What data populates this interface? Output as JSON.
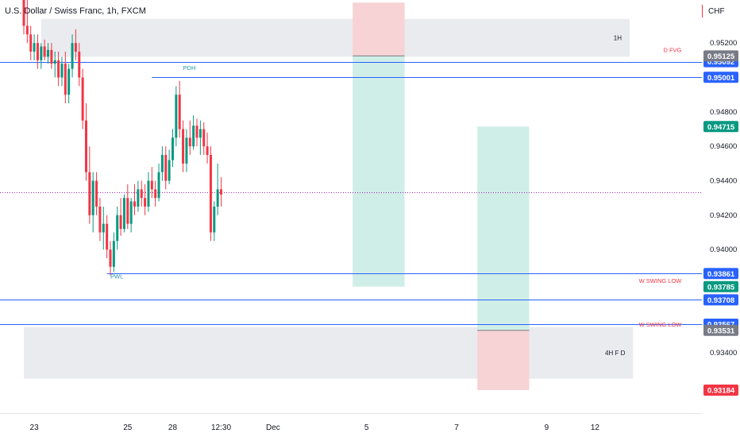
{
  "header": {
    "title": "U.S. Dollar / Swiss Franc, 1h, FXCM",
    "currency": "CHF"
  },
  "colors": {
    "bull": "#089981",
    "bear": "#f23645",
    "hline": "#2962ff",
    "zone": "#e9ebef",
    "profit": "#cfeee7",
    "loss": "#f7d3d6",
    "dotted": "#9c27b0",
    "axis_text": "#131722",
    "label_red": "#f23645",
    "label_teal": "#2196a8"
  },
  "chart_data": {
    "type": "candlestick",
    "title": "U.S. Dollar / Swiss Franc, 1h, FXCM",
    "ylim": [
      0.9305,
      0.9545
    ],
    "y_ticks": [
      0.952,
      0.948,
      0.946,
      0.944,
      0.942,
      0.94,
      0.934
    ],
    "y_tick_labels": [
      "0.95200",
      "0.94800",
      "0.94600",
      "0.94400",
      "0.94200",
      "0.94000",
      "0.93400"
    ],
    "x_ticks": [
      {
        "label": "23",
        "idx": 3
      },
      {
        "label": "25",
        "idx": 30
      },
      {
        "label": "28",
        "idx": 43
      },
      {
        "label": "12:30",
        "idx": 57
      },
      {
        "label": "Dec",
        "idx": 72
      },
      {
        "label": "5",
        "idx": 99
      },
      {
        "label": "7",
        "idx": 125
      },
      {
        "label": "9",
        "idx": 151
      },
      {
        "label": "12",
        "idx": 165
      }
    ],
    "candles": [
      [
        0.9545,
        0.9545,
        0.9525,
        0.953
      ],
      [
        0.953,
        0.9545,
        0.952,
        0.9525
      ],
      [
        0.9525,
        0.953,
        0.951,
        0.9515
      ],
      [
        0.9515,
        0.9525,
        0.951,
        0.952
      ],
      [
        0.952,
        0.9525,
        0.9505,
        0.951
      ],
      [
        0.951,
        0.952,
        0.9505,
        0.9518
      ],
      [
        0.9518,
        0.9522,
        0.951,
        0.9512
      ],
      [
        0.9512,
        0.952,
        0.9508,
        0.9516
      ],
      [
        0.9516,
        0.952,
        0.9505,
        0.9508
      ],
      [
        0.9508,
        0.9515,
        0.95,
        0.951
      ],
      [
        0.951,
        0.9515,
        0.9495,
        0.95
      ],
      [
        0.95,
        0.9512,
        0.9495,
        0.9508
      ],
      [
        0.9508,
        0.9515,
        0.9485,
        0.949
      ],
      [
        0.949,
        0.9508,
        0.9485,
        0.9505
      ],
      [
        0.9505,
        0.9525,
        0.95,
        0.952
      ],
      [
        0.952,
        0.9528,
        0.951,
        0.9515
      ],
      [
        0.9515,
        0.952,
        0.9495,
        0.95
      ],
      [
        0.95,
        0.9505,
        0.947,
        0.9475
      ],
      [
        0.9475,
        0.9485,
        0.944,
        0.9445
      ],
      [
        0.9445,
        0.946,
        0.9415,
        0.942
      ],
      [
        0.942,
        0.9445,
        0.941,
        0.944
      ],
      [
        0.944,
        0.9445,
        0.942,
        0.9425
      ],
      [
        0.9425,
        0.943,
        0.9405,
        0.941
      ],
      [
        0.941,
        0.9425,
        0.94,
        0.9415
      ],
      [
        0.9415,
        0.942,
        0.9395,
        0.94
      ],
      [
        0.94,
        0.9405,
        0.9385,
        0.939
      ],
      [
        0.939,
        0.941,
        0.9387,
        0.9405
      ],
      [
        0.9405,
        0.9425,
        0.94,
        0.942
      ],
      [
        0.942,
        0.943,
        0.9408,
        0.9412
      ],
      [
        0.9412,
        0.9432,
        0.941,
        0.943
      ],
      [
        0.943,
        0.9438,
        0.9412,
        0.9415
      ],
      [
        0.9415,
        0.943,
        0.941,
        0.9428
      ],
      [
        0.9428,
        0.9438,
        0.942,
        0.9425
      ],
      [
        0.9425,
        0.944,
        0.9422,
        0.9435
      ],
      [
        0.9435,
        0.944,
        0.9425,
        0.943
      ],
      [
        0.943,
        0.9438,
        0.942,
        0.9425
      ],
      [
        0.9425,
        0.9445,
        0.9422,
        0.944
      ],
      [
        0.944,
        0.9448,
        0.943,
        0.9435
      ],
      [
        0.9435,
        0.944,
        0.9425,
        0.943
      ],
      [
        0.943,
        0.945,
        0.9428,
        0.9445
      ],
      [
        0.9445,
        0.946,
        0.944,
        0.9455
      ],
      [
        0.9455,
        0.946,
        0.9435,
        0.944
      ],
      [
        0.944,
        0.9458,
        0.9438,
        0.9452
      ],
      [
        0.9452,
        0.947,
        0.9448,
        0.9465
      ],
      [
        0.9465,
        0.9495,
        0.946,
        0.949
      ],
      [
        0.949,
        0.9498,
        0.9465,
        0.947
      ],
      [
        0.947,
        0.9475,
        0.9445,
        0.945
      ],
      [
        0.945,
        0.947,
        0.9445,
        0.9465
      ],
      [
        0.9465,
        0.9475,
        0.9455,
        0.946
      ],
      [
        0.946,
        0.9478,
        0.9458,
        0.9472
      ],
      [
        0.9472,
        0.9476,
        0.946,
        0.9465
      ],
      [
        0.9465,
        0.9475,
        0.9455,
        0.947
      ],
      [
        0.947,
        0.9474,
        0.9455,
        0.946
      ],
      [
        0.946,
        0.9468,
        0.945,
        0.9455
      ],
      [
        0.9455,
        0.946,
        0.9405,
        0.941
      ],
      [
        0.941,
        0.9428,
        0.9405,
        0.9425
      ],
      [
        0.9425,
        0.945,
        0.942,
        0.9435
      ],
      [
        0.9435,
        0.9442,
        0.9425,
        0.9432
      ]
    ],
    "lines": [
      {
        "price": 0.95092,
        "start_idx": 0
      },
      {
        "price": 0.95001,
        "start_idx": 37
      },
      {
        "price": 0.93861,
        "start_idx": 24
      },
      {
        "price": 0.93708,
        "start_idx": 0
      },
      {
        "price": 0.93567,
        "start_idx": 0
      }
    ],
    "dotted_line": {
      "price": 0.94335
    },
    "zones": [
      {
        "label": "1H",
        "top": 0.9534,
        "bottom": 0.9512,
        "start_idx": 5,
        "end_idx": 175
      },
      {
        "label": "4H F D",
        "top": 0.9355,
        "bottom": 0.9325,
        "start_idx": 0,
        "end_idx": 176
      }
    ],
    "positions": [
      {
        "start_idx": 95,
        "end_idx": 110,
        "stop": 0.95435,
        "entry": 0.95125,
        "target": 0.93785
      },
      {
        "start_idx": 131,
        "end_idx": 146,
        "stop": 0.93184,
        "entry": 0.93531,
        "target": 0.94715
      }
    ],
    "text_labels": [
      {
        "text": "PDH",
        "price": 0.9502,
        "idx": 46,
        "color": "label_teal",
        "align": "start"
      },
      {
        "text": "PWL",
        "price": 0.9381,
        "idx": 25,
        "color": "label_teal",
        "align": "start"
      },
      {
        "text": "D FVG",
        "price": 0.95125,
        "idx": 190,
        "color": "label_red",
        "align": "end"
      },
      {
        "text": "W SWING LOW",
        "price": 0.93785,
        "idx": 190,
        "color": "label_red",
        "align": "end"
      },
      {
        "text": "W SWING LOW",
        "price": 0.93531,
        "idx": 190,
        "color": "label_red",
        "align": "end"
      }
    ],
    "price_tags": [
      {
        "label": "0.95092",
        "price": 0.95092,
        "color": "#2962ff"
      },
      {
        "label": "0.95125",
        "price": 0.95125,
        "color": "#787b86"
      },
      {
        "label": "0.95001",
        "price": 0.95001,
        "color": "#2962ff"
      },
      {
        "label": "0.94715",
        "price": 0.94715,
        "color": "#089981"
      },
      {
        "label": "0.93861",
        "price": 0.93861,
        "color": "#2962ff"
      },
      {
        "label": "0.93785",
        "price": 0.93785,
        "color": "#089981"
      },
      {
        "label": "0.93708",
        "price": 0.93708,
        "color": "#2962ff"
      },
      {
        "label": "0.93567",
        "price": 0.93567,
        "color": "#2962ff"
      },
      {
        "label": "0.93531",
        "price": 0.93531,
        "color": "#787b86"
      },
      {
        "label": "0.93184",
        "price": 0.93184,
        "color": "#f23645"
      }
    ]
  }
}
